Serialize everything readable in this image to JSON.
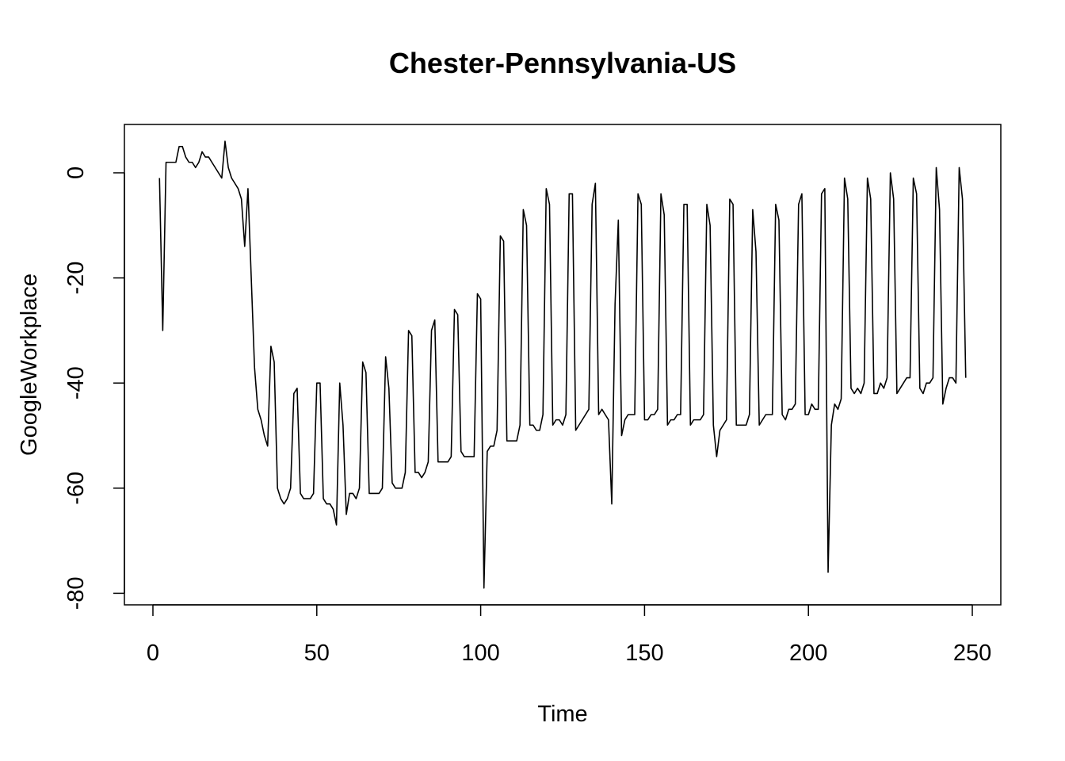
{
  "chart_data": {
    "type": "line",
    "title": "Chester-Pennsylvania-US",
    "xlabel": "Time",
    "ylabel": "GoogleWorkplace",
    "xlim": [
      -8.7,
      258.7
    ],
    "ylim": [
      -82.2,
      9.2
    ],
    "xticks": [
      0,
      50,
      100,
      150,
      200,
      250
    ],
    "yticks": [
      -80,
      -60,
      -40,
      -20,
      0
    ],
    "xtick_labels": [
      "0",
      "50",
      "100",
      "150",
      "200",
      "250"
    ],
    "ytick_labels": [
      "-80",
      "-60",
      "-40",
      "-20",
      "0"
    ],
    "grid": false,
    "line_color": "#000000",
    "series": [
      {
        "x": [
          2,
          3,
          4,
          5,
          6,
          7,
          8,
          9,
          10,
          11,
          12,
          13,
          14,
          15,
          16,
          17,
          18,
          19,
          20,
          21,
          22,
          23,
          24,
          25,
          26,
          27,
          28,
          29,
          30,
          31,
          32,
          33,
          34,
          35,
          36,
          37,
          38,
          39,
          40,
          41,
          42,
          43,
          44,
          45,
          46,
          47,
          48,
          49,
          50,
          51,
          52,
          53,
          54,
          55,
          56,
          57,
          58,
          59,
          60,
          61,
          62,
          63,
          64,
          65,
          66,
          67,
          68,
          69,
          70,
          71,
          72,
          73,
          74,
          75,
          76,
          77,
          78,
          79,
          80,
          81,
          82,
          83,
          84,
          85,
          86,
          87,
          88,
          89,
          90,
          91,
          92,
          93,
          94,
          95,
          96,
          97,
          98,
          99,
          100,
          101,
          102,
          103,
          104,
          105,
          106,
          107,
          108,
          109,
          110,
          111,
          112,
          113,
          114,
          115,
          116,
          117,
          118,
          119,
          120,
          121,
          122,
          123,
          124,
          125,
          126,
          127,
          128,
          129,
          130,
          131,
          132,
          133,
          134,
          135,
          136,
          137,
          138,
          139,
          140,
          141,
          142,
          143,
          144,
          145,
          146,
          147,
          148,
          149,
          150,
          151,
          152,
          153,
          154,
          155,
          156,
          157,
          158,
          159,
          160,
          161,
          162,
          163,
          164,
          165,
          166,
          167,
          168,
          169,
          170,
          171,
          172,
          173,
          174,
          175,
          176,
          177,
          178,
          179,
          180,
          181,
          182,
          183,
          184,
          185,
          186,
          187,
          188,
          189,
          190,
          191,
          192,
          193,
          194,
          195,
          196,
          197,
          198,
          199,
          200,
          201,
          202,
          203,
          204,
          205,
          206,
          207,
          208,
          209,
          210,
          211,
          212,
          213,
          214,
          215,
          216,
          217,
          218,
          219,
          220,
          221,
          222,
          223,
          224,
          225,
          226,
          227,
          228,
          229,
          230,
          231,
          232,
          233,
          234,
          235,
          236,
          237,
          238,
          239,
          240,
          241,
          242,
          243,
          244,
          245,
          246,
          247,
          248
        ],
        "y": [
          -1,
          -30,
          2,
          2,
          2,
          2,
          5,
          5,
          3,
          2,
          2,
          1,
          2,
          4,
          3,
          3,
          2,
          1,
          0,
          -1,
          6,
          1,
          -1,
          -2,
          -3,
          -5,
          -14,
          -3,
          -20,
          -37,
          -45,
          -47,
          -50,
          -52,
          -33,
          -36,
          -60,
          -62,
          -63,
          -62,
          -60,
          -42,
          -41,
          -61,
          -62,
          -62,
          -62,
          -61,
          -40,
          -40,
          -62,
          -63,
          -63,
          -64,
          -67,
          -40,
          -48,
          -65,
          -61,
          -61,
          -62,
          -60,
          -36,
          -38,
          -61,
          -61,
          -61,
          -61,
          -60,
          -35,
          -41,
          -59,
          -60,
          -60,
          -60,
          -57,
          -30,
          -31,
          -57,
          -57,
          -58,
          -57,
          -55,
          -30,
          -28,
          -55,
          -55,
          -55,
          -55,
          -54,
          -26,
          -27,
          -53,
          -54,
          -54,
          -54,
          -54,
          -23,
          -24,
          -79,
          -53,
          -52,
          -52,
          -49,
          -12,
          -13,
          -51,
          -51,
          -51,
          -51,
          -48,
          -7,
          -10,
          -48,
          -48,
          -49,
          -49,
          -46,
          -3,
          -6,
          -48,
          -47,
          -47,
          -48,
          -46,
          -4,
          -4,
          -49,
          -48,
          -47,
          -46,
          -45,
          -6,
          -2,
          -46,
          -45,
          -46,
          -47,
          -63,
          -25,
          -9,
          -50,
          -47,
          -46,
          -46,
          -46,
          -4,
          -6,
          -47,
          -47,
          -46,
          -46,
          -45,
          -4,
          -8,
          -48,
          -47,
          -47,
          -46,
          -46,
          -6,
          -6,
          -48,
          -47,
          -47,
          -47,
          -46,
          -6,
          -10,
          -48,
          -54,
          -49,
          -48,
          -47,
          -5,
          -6,
          -48,
          -48,
          -48,
          -48,
          -46,
          -7,
          -15,
          -48,
          -47,
          -46,
          -46,
          -46,
          -6,
          -9,
          -46,
          -47,
          -45,
          -45,
          -44,
          -6,
          -4,
          -46,
          -46,
          -44,
          -45,
          -45,
          -4,
          -3,
          -76,
          -48,
          -44,
          -45,
          -43,
          -1,
          -5,
          -41,
          -42,
          -41,
          -42,
          -40,
          -1,
          -5,
          -42,
          -42,
          -40,
          -41,
          -39,
          0,
          -5,
          -42,
          -41,
          -40,
          -39,
          -39,
          -1,
          -4,
          -41,
          -42,
          -40,
          -40,
          -39,
          1,
          -7,
          -44,
          -41,
          -39,
          -39,
          -40,
          1,
          -5,
          -39
        ]
      }
    ]
  }
}
